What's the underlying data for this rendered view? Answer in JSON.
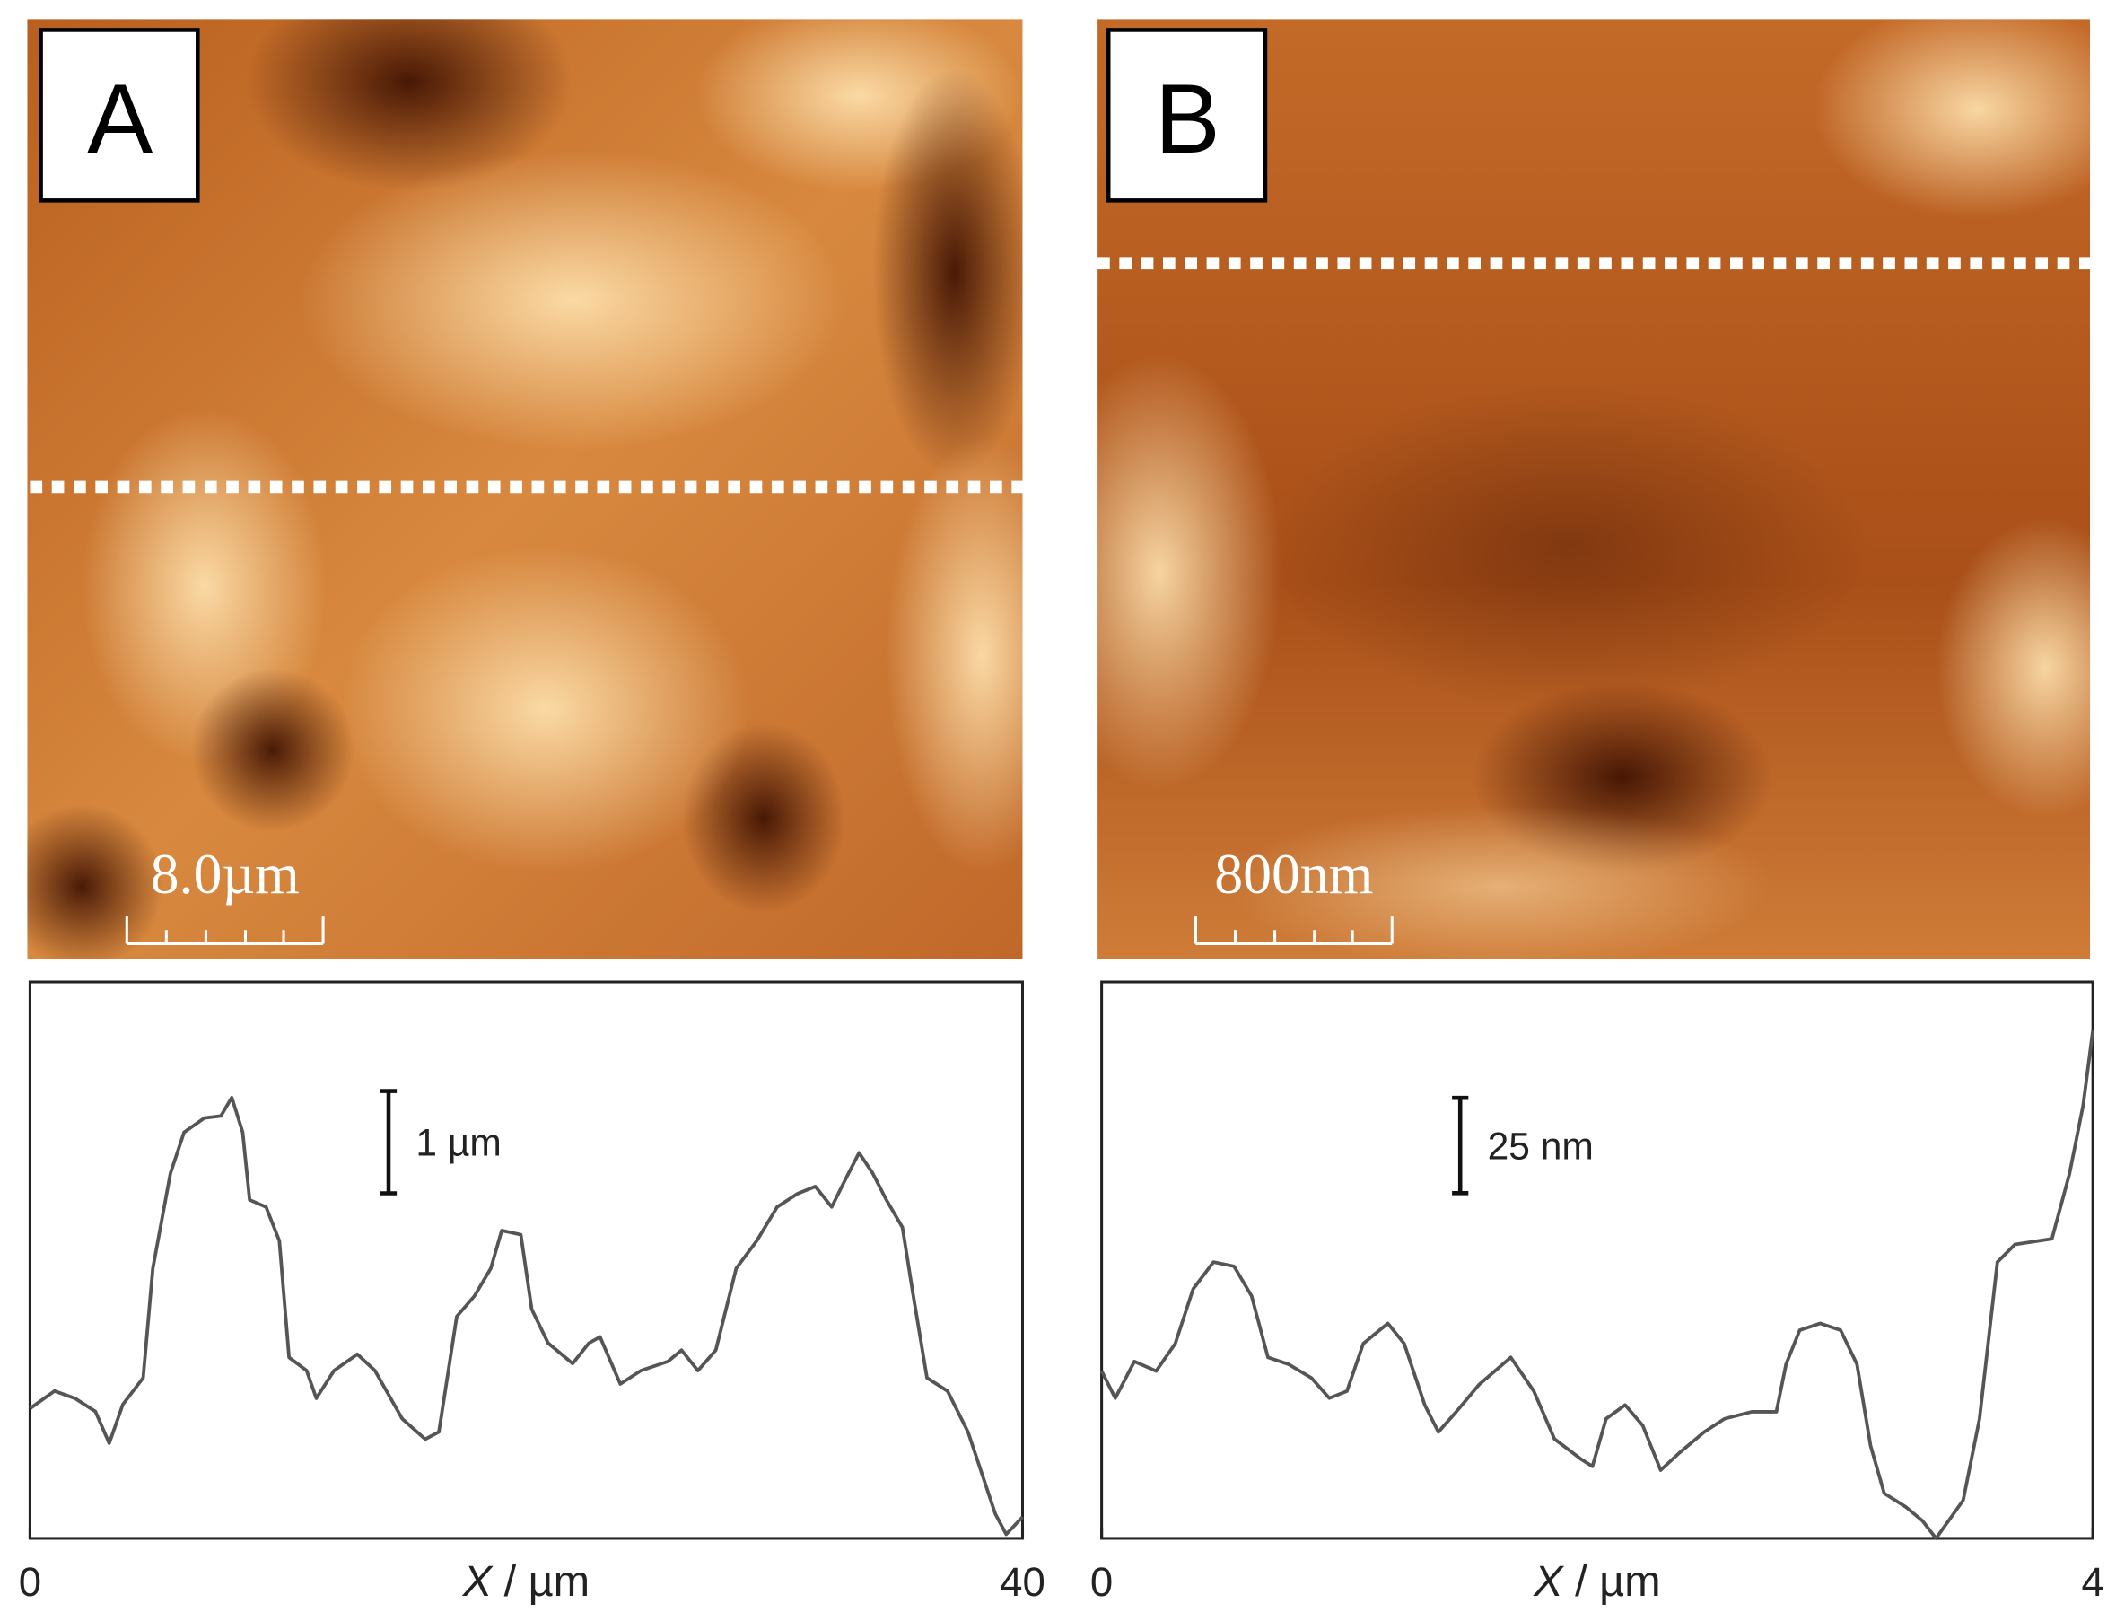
{
  "images": [
    {
      "label": "A",
      "scale_bar": "8.0µm"
    },
    {
      "label": "B",
      "scale_bar": "800nm"
    }
  ],
  "chart_data": [
    {
      "type": "line",
      "xlabel": "X / µm",
      "color": "#555555",
      "xlim": [
        0,
        40
      ],
      "xticks": [
        0,
        40
      ],
      "ylim": [
        0,
        5.44
      ],
      "scale_bar": {
        "value": 1,
        "label": "1 µm"
      },
      "x": [
        0,
        0.99,
        1.81,
        2.64,
        3.19,
        3.74,
        4.56,
        4.95,
        5.66,
        6.21,
        7.03,
        7.69,
        8.13,
        8.57,
        8.85,
        9.51,
        10.05,
        10.44,
        11.15,
        11.54,
        12.25,
        13.19,
        13.9,
        15.0,
        15.93,
        16.48,
        17.2,
        17.91,
        18.57,
        19.01,
        19.78,
        20.22,
        20.88,
        21.87,
        22.53,
        22.97,
        23.79,
        24.62,
        25.71,
        26.26,
        26.92,
        27.64,
        28.46,
        29.29,
        30.11,
        30.93,
        31.65,
        32.31,
        32.86,
        33.41,
        33.96,
        34.51,
        35.16,
        35.6,
        36.15,
        36.98,
        37.8,
        38.35,
        38.9,
        39.34,
        40
      ],
      "values": [
        1.27,
        1.44,
        1.37,
        1.24,
        0.93,
        1.31,
        1.57,
        2.64,
        3.57,
        3.97,
        4.11,
        4.13,
        4.31,
        3.97,
        3.31,
        3.24,
        2.91,
        1.77,
        1.64,
        1.37,
        1.64,
        1.8,
        1.64,
        1.17,
        0.97,
        1.04,
        2.17,
        2.37,
        2.64,
        3.01,
        2.97,
        2.24,
        1.91,
        1.71,
        1.91,
        1.97,
        1.51,
        1.64,
        1.73,
        1.84,
        1.64,
        1.84,
        2.64,
        2.91,
        3.24,
        3.37,
        3.44,
        3.24,
        3.51,
        3.77,
        3.57,
        3.31,
        3.04,
        2.37,
        1.57,
        1.44,
        1.04,
        0.64,
        0.24,
        0.04,
        0.21
      ]
    },
    {
      "type": "line",
      "xlabel": "X / µm",
      "color": "#555555",
      "xlim": [
        0,
        4
      ],
      "xticks": [
        0,
        4
      ],
      "ylim": [
        0,
        146
      ],
      "scale_bar": {
        "value": 25,
        "label": "25 nm"
      },
      "x": [
        0,
        0.055,
        0.132,
        0.22,
        0.297,
        0.369,
        0.451,
        0.534,
        0.605,
        0.671,
        0.754,
        0.847,
        0.919,
        0.99,
        1.056,
        1.155,
        1.221,
        1.304,
        1.359,
        1.431,
        1.524,
        1.651,
        1.744,
        1.827,
        1.937,
        1.981,
        2.036,
        2.113,
        2.184,
        2.256,
        2.333,
        2.432,
        2.514,
        2.624,
        2.723,
        2.762,
        2.817,
        2.9,
        2.982,
        3.048,
        3.103,
        3.158,
        3.246,
        3.312,
        3.367,
        3.477,
        3.543,
        3.615,
        3.686,
        3.835,
        3.906,
        3.961,
        4
      ],
      "values": [
        43.9,
        36.8,
        46.4,
        43.9,
        51.1,
        65.4,
        72.5,
        71.4,
        63.6,
        47.5,
        45.7,
        42.1,
        36.8,
        38.6,
        51.1,
        56.4,
        51.1,
        35.0,
        27.9,
        33.2,
        40.4,
        47.5,
        38.6,
        26.1,
        20.7,
        18.9,
        31.4,
        35.0,
        29.6,
        17.9,
        22.5,
        27.9,
        31.4,
        33.2,
        33.2,
        45.7,
        54.6,
        56.4,
        54.6,
        45.7,
        24.3,
        11.8,
        8.2,
        4.6,
        0,
        10.0,
        31.4,
        72.5,
        77.1,
        78.6,
        95.7,
        113.6,
        133.2
      ]
    }
  ]
}
